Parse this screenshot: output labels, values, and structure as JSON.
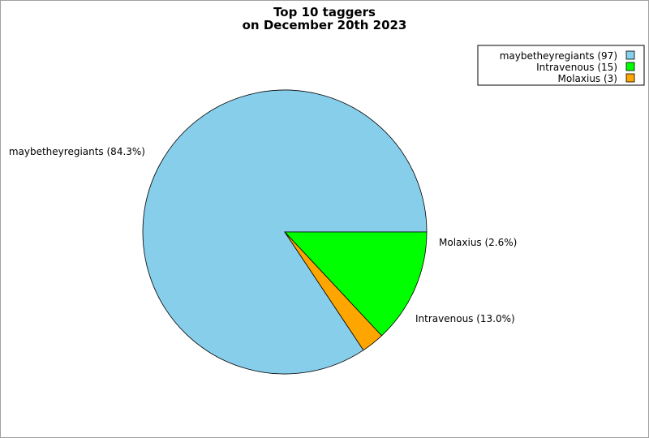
{
  "chart_data": {
    "type": "pie",
    "title": "Top 10 taggers",
    "subtitle": "on December 20th 2023",
    "legend_position": "top-right",
    "slices": [
      {
        "name": "maybetheyregiants",
        "value": 97,
        "percent_label": "maybetheyregiants (84.3%)",
        "legend_label": "maybetheyregiants (97)",
        "color": "#87ceeb"
      },
      {
        "name": "Intravenous",
        "value": 15,
        "percent_label": "Intravenous (13.0%)",
        "legend_label": "Intravenous (15)",
        "color": "#00ff00"
      },
      {
        "name": "Molaxius",
        "value": 3,
        "percent_label": "Molaxius (2.6%)",
        "legend_label": "Molaxius (3)",
        "color": "#ffa500"
      }
    ]
  }
}
